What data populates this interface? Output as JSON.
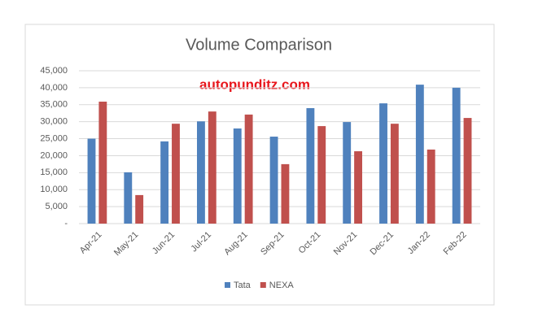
{
  "chart_data": {
    "type": "bar",
    "title": "Volume Comparison",
    "watermark": "autopunditz.com",
    "categories": [
      "Apr-21",
      "May-21",
      "Jun-21",
      "Jul-21",
      "Aug-21",
      "Sep-21",
      "Oct-21",
      "Nov-21",
      "Dec-21",
      "Jan-22",
      "Feb-22"
    ],
    "series": [
      {
        "name": "Tata",
        "color": "#4f81bd",
        "values": [
          25000,
          15100,
          24200,
          30100,
          28000,
          25600,
          34000,
          29900,
          35400,
          40900,
          40000
        ]
      },
      {
        "name": "NEXA",
        "color": "#c0504d",
        "values": [
          35900,
          8400,
          29400,
          33000,
          32100,
          17500,
          28700,
          21300,
          29400,
          21800,
          31100
        ]
      }
    ],
    "ylim": [
      0,
      45000
    ],
    "yticks": [
      {
        "value": 0,
        "label": "-"
      },
      {
        "value": 5000,
        "label": "5,000"
      },
      {
        "value": 10000,
        "label": "10,000"
      },
      {
        "value": 15000,
        "label": "15,000"
      },
      {
        "value": 20000,
        "label": "20,000"
      },
      {
        "value": 25000,
        "label": "25,000"
      },
      {
        "value": 30000,
        "label": "30,000"
      },
      {
        "value": 35000,
        "label": "35,000"
      },
      {
        "value": 40000,
        "label": "40,000"
      },
      {
        "value": 45000,
        "label": "45,000"
      }
    ],
    "grid": true,
    "legend": "bottom"
  }
}
